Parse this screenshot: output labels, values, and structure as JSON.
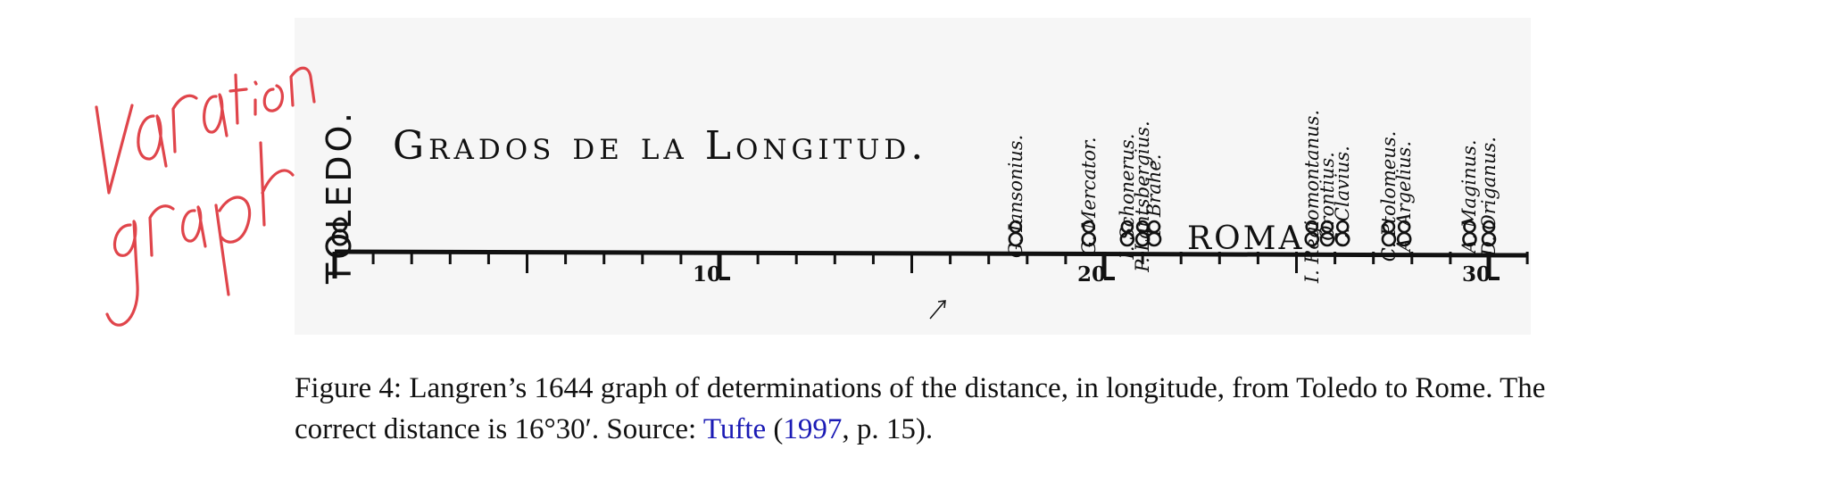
{
  "figure": {
    "toledo_label": "TOLEDO.",
    "title": "Grados de la Longitud.",
    "roma_label": "ROMA",
    "tick_labels": [
      "10",
      "20",
      "30"
    ],
    "astronomers": [
      {
        "name": "G. Iansonius.",
        "longitude": 17.7
      },
      {
        "name": "G. Mercator.",
        "longitude": 19.6
      },
      {
        "name": "I. Schonerus.",
        "longitude": 20.6
      },
      {
        "name": "P. Lantsbergius.",
        "longitude": 21.0
      },
      {
        "name": "T. Brahe.",
        "longitude": 21.3
      },
      {
        "name": "I. Regiomontanus.",
        "longitude": 25.4
      },
      {
        "name": "Orontius.",
        "longitude": 25.8
      },
      {
        "name": "C. Clavius.",
        "longitude": 26.2
      },
      {
        "name": "C. Ptolomeus.",
        "longitude": 27.4
      },
      {
        "name": "A. Argelius.",
        "longitude": 27.8
      },
      {
        "name": "A. Maginus.",
        "longitude": 29.5
      },
      {
        "name": "D. Origanus.",
        "longitude": 30.0
      }
    ],
    "annotation": "Variation graph",
    "annotation_color": "#e0454b"
  },
  "caption": {
    "text_before": "Figure 4: Langren’s 1644 graph of determinations of the distance, in longitude, from Toledo to Rome. The correct distance is 16°30′. Source: ",
    "author": "Tufte",
    "open_paren": " (",
    "year": "1997",
    "text_after": ", p. 15).",
    "link_color": "#1b1bb5"
  }
}
